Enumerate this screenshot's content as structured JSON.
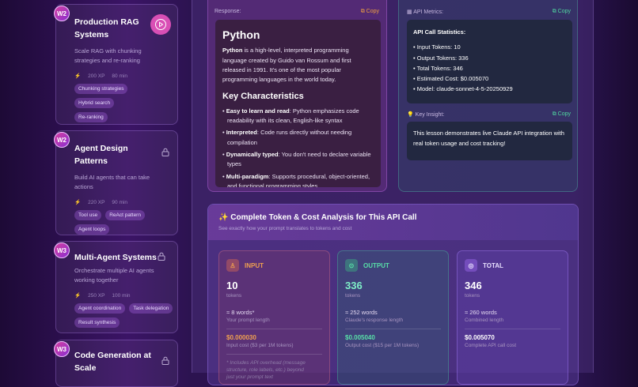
{
  "sidebar": {
    "lessons": [
      {
        "week": "W2",
        "title": "Production RAG Systems",
        "description": "Scale RAG with chunking strategies and re-ranking",
        "xp": "200 XP",
        "duration": "80 min",
        "tags": [
          "Chunking strategies",
          "Hybrid search",
          "Re-ranking"
        ]
      },
      {
        "week": "W2",
        "title": "Agent Design Patterns",
        "description": "Build AI agents that can take actions",
        "xp": "220 XP",
        "duration": "90 min",
        "tags": [
          "Tool use",
          "ReAct pattern",
          "Agent loops"
        ]
      },
      {
        "week": "W3",
        "title": "Multi-Agent Systems",
        "description": "Orchestrate multiple AI agents working together",
        "xp": "250 XP",
        "duration": "100 min",
        "tags": [
          "Agent coordination",
          "Task delegation",
          "Result synthesis"
        ]
      },
      {
        "week": "W3",
        "title": "Code Generation at Scale"
      }
    ]
  },
  "response": {
    "label": "Response:",
    "copy": "Copy",
    "heading": "Python",
    "intro": {
      "bold": "Python",
      "text": " is a high-level, interpreted programming language created by Guido van Rossum and first released in 1991. It's one of the most popular programming languages in the world today."
    },
    "subheading": "Key Characteristics",
    "bullets": [
      {
        "bold": "Easy to learn and read",
        "text": ": Python emphasizes code readability with its clean, English-like syntax"
      },
      {
        "bold": "Interpreted",
        "text": ": Code runs directly without needing compilation"
      },
      {
        "bold": "Dynamically typed",
        "text": ": You don't need to declare variable types"
      },
      {
        "bold": "Multi-paradigm",
        "text": ": Supports procedural, object-oriented, and functional programming styles"
      }
    ]
  },
  "metrics": {
    "label": "API Metrics:",
    "copy": "Copy",
    "heading": "API Call Statistics:",
    "items": [
      "Input Tokens: 10",
      "Output Tokens: 336",
      "Total Tokens: 346",
      "Estimated Cost: $0.005070",
      "Model: claude-sonnet-4-5-20250929"
    ],
    "insight_label": "Key Insight:",
    "insight_copy": "Copy",
    "insight": "This lesson demonstrates live Claude API integration with real token usage and cost tracking!"
  },
  "analysis": {
    "title": "Complete Token & Cost Analysis for This API Call",
    "subtitle": "See exactly how your prompt translates to tokens and cost",
    "cards": [
      {
        "label": "INPUT",
        "tokens": 10,
        "unit": "tokens",
        "words": "≈ 8 words*",
        "words_note": "Your prompt length",
        "cost": "$0.000030",
        "cost_note": "Input cost ($3 per 1M tokens)",
        "footnote": "* Includes API overhead (message structure, role labels, etc.) beyond just your prompt text"
      },
      {
        "label": "OUTPUT",
        "tokens": 336,
        "unit": "tokens",
        "words": "≈ 252 words",
        "words_note": "Claude's response length",
        "cost": "$0.005040",
        "cost_note": "Output cost ($15 per 1M tokens)"
      },
      {
        "label": "TOTAL",
        "tokens": 346,
        "unit": "tokens",
        "words": "≈ 260 words",
        "words_note": "Combined length",
        "cost": "$0.005070",
        "cost_note": "Complete API call cost"
      }
    ]
  }
}
